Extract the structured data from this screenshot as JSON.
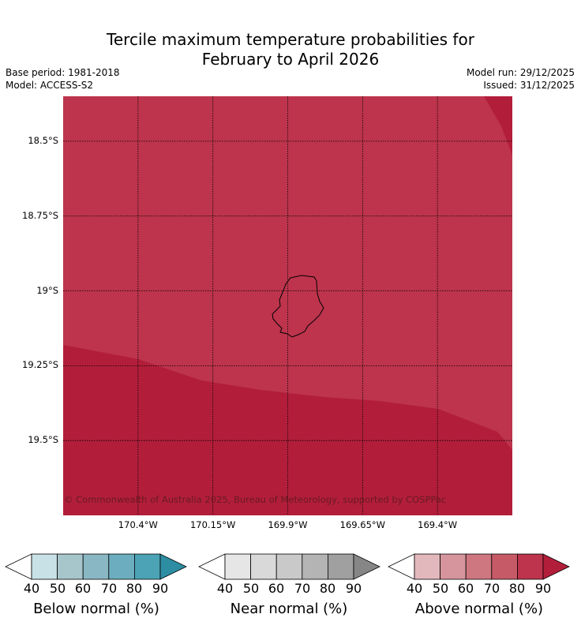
{
  "title_line1": "Tercile maximum temperature probabilities for",
  "title_line2": "February to April 2026",
  "meta": {
    "base_period": "Base period: 1981-2018",
    "model": "Model: ACCESS-S2",
    "model_run": "Model run: 29/12/2025",
    "issued": "Issued: 31/12/2025"
  },
  "copyright": "© Commonwealth of Australia 2025, Bureau of Meteorology, supported by COSPPac",
  "colors": {
    "above_80_90": "#bd344c",
    "above_90_plus": "#b21e3a",
    "coastline": "#000000",
    "grid": "#000000"
  },
  "chart_data": {
    "type": "heatmap",
    "title": "Tercile maximum temperature probabilities for February to April 2026",
    "region": "Niue",
    "lon_ticks": [
      "170.4°W",
      "170.15°W",
      "169.9°W",
      "169.65°W",
      "169.4°W"
    ],
    "lon_values": [
      -170.4,
      -170.15,
      -169.9,
      -169.65,
      -169.4
    ],
    "lat_ticks": [
      "18.5°S",
      "18.75°S",
      "19°S",
      "19.25°S",
      "19.5°S"
    ],
    "lat_values": [
      -18.5,
      -18.75,
      -19.0,
      -19.25,
      -19.5
    ],
    "xlim": [
      -170.65,
      -169.15
    ],
    "ylim": [
      -19.75,
      -18.35
    ],
    "field": "Above normal probability",
    "dominant_category": "Above normal",
    "bands": [
      {
        "range": "80-90%",
        "color": "#bd344c",
        "area": "north and central"
      },
      {
        "range": "90%+",
        "color": "#b21e3a",
        "area": "south and north-east corner"
      }
    ],
    "colorbars": [
      {
        "name": "below",
        "label": "Below normal (%)",
        "ticks": [
          "40",
          "50",
          "60",
          "70",
          "80",
          "90"
        ],
        "colors": [
          "#c8e1e6",
          "#a7c6cc",
          "#8ab7c4",
          "#6caebf",
          "#4ba3b5",
          "#2d8ea3"
        ]
      },
      {
        "name": "near",
        "label": "Near normal (%)",
        "ticks": [
          "40",
          "50",
          "60",
          "70",
          "80",
          "90"
        ],
        "colors": [
          "#e6e6e6",
          "#d9d9d9",
          "#c9c9c9",
          "#b4b4b4",
          "#a0a0a0",
          "#868686"
        ]
      },
      {
        "name": "above",
        "label": "Above normal (%)",
        "ticks": [
          "40",
          "50",
          "60",
          "70",
          "80",
          "90"
        ],
        "colors": [
          "#e2b8bd",
          "#d6959c",
          "#ce7780",
          "#c65a67",
          "#bd344c",
          "#b21e3a"
        ]
      }
    ]
  }
}
